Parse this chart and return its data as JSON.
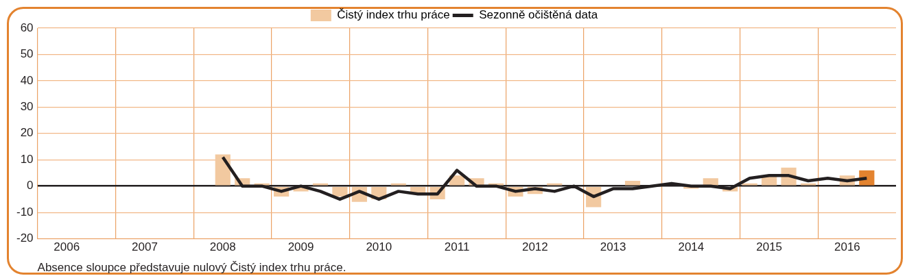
{
  "chart_data": {
    "type": "bar",
    "categories": [
      null,
      "2006",
      null,
      null,
      null,
      "2007",
      null,
      null,
      null,
      "2008",
      null,
      null,
      null,
      "2009",
      null,
      null,
      null,
      "2010",
      null,
      null,
      null,
      "2011",
      null,
      null,
      null,
      "2012",
      null,
      null,
      null,
      "2013",
      null,
      null,
      null,
      "2014",
      null,
      null,
      null,
      "2015",
      null,
      null,
      null,
      "2016",
      null,
      null
    ],
    "series": [
      {
        "name": "Čistý index trhu práce",
        "type": "bar",
        "color": "#f2c9a0",
        "colors": [
          "#f2c9a0",
          "#f2c9a0",
          "#f2c9a0",
          "#f2c9a0",
          "#f2c9a0",
          "#f2c9a0",
          "#f2c9a0",
          "#f2c9a0",
          "#f2c9a0",
          "#f2c9a0",
          "#f2c9a0",
          "#f2c9a0",
          "#f2c9a0",
          "#f2c9a0",
          "#f2c9a0",
          "#f2c9a0",
          "#f2c9a0",
          "#f2c9a0",
          "#f2c9a0",
          "#f2c9a0",
          "#f2c9a0",
          "#f2c9a0",
          "#f2c9a0",
          "#f2c9a0",
          "#f2c9a0",
          "#f2c9a0",
          "#f2c9a0",
          "#f2c9a0",
          "#f2c9a0",
          "#f2c9a0",
          "#f2c9a0",
          "#f2c9a0",
          "#f2c9a0",
          "#f2c9a0",
          "#f2c9a0",
          "#f2c9a0",
          "#f2c9a0",
          "#f2c9a0",
          "#f2c9a0",
          "#f2c9a0",
          "#f2c9a0",
          "#f2c9a0",
          "#e3832f",
          "#f2c9a0"
        ],
        "values": [
          null,
          null,
          null,
          null,
          null,
          null,
          null,
          null,
          null,
          12,
          3,
          1,
          -4,
          -2,
          1,
          -4,
          -6,
          -5,
          1,
          -3,
          -5,
          4,
          3,
          1,
          -4,
          -3,
          1,
          0,
          -8,
          null,
          2,
          0,
          0,
          -1,
          3,
          -2,
          1,
          4,
          7,
          1,
          0,
          4,
          6,
          null
        ]
      },
      {
        "name": "Sezonně očištěná data",
        "type": "line",
        "color": "#231f20",
        "values": [
          null,
          null,
          null,
          null,
          null,
          null,
          null,
          null,
          null,
          11,
          0,
          0,
          -2,
          0,
          -2,
          -5,
          -2,
          -5,
          -2,
          -3,
          -3,
          6,
          0,
          0,
          -2,
          -1,
          -2,
          0,
          -4,
          -1,
          -1,
          0,
          1,
          0,
          0,
          -1,
          3,
          4,
          4,
          2,
          3,
          2,
          3,
          null
        ]
      }
    ],
    "ylim": [
      -20,
      60
    ],
    "yticks": [
      -20,
      -10,
      0,
      10,
      20,
      30,
      40,
      50,
      60
    ],
    "grid": true,
    "legend": "top",
    "marker": "none",
    "annotations": [
      "Absence sloupce představuje nulový Čistý index trhu práce."
    ]
  }
}
